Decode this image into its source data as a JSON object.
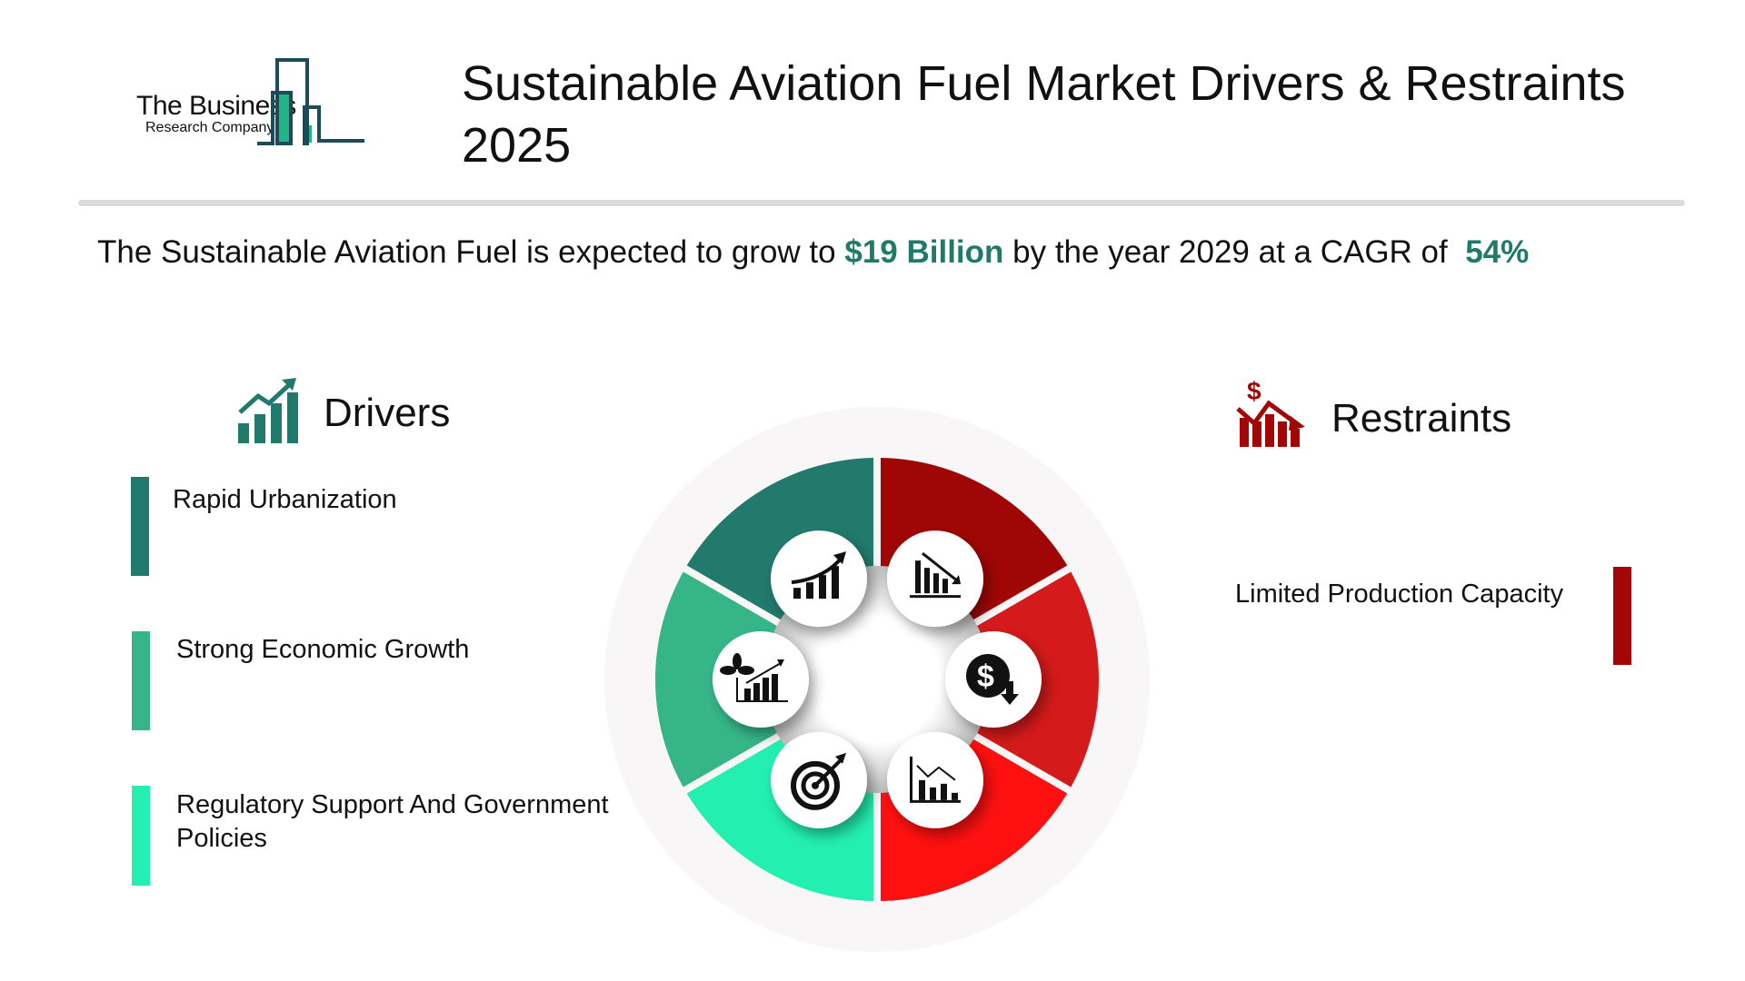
{
  "logo": {
    "line1": "The Business",
    "line2": "Research Company"
  },
  "header": {
    "title_line1": "Sustainable Aviation Fuel Market Drivers & Restraints",
    "title_line2": "2025"
  },
  "summary": {
    "prefix": "The Sustainable Aviation Fuel is expected to grow to ",
    "value": "$19 Billion",
    "middle": " by the year 2029 at a CAGR of ",
    "cagr": "54%"
  },
  "drivers": {
    "title": "Drivers",
    "icon": "growth-chart-icon",
    "items": [
      {
        "label": "Rapid Urbanization",
        "color": "#217a6c"
      },
      {
        "label": "Strong Economic Growth",
        "color": "#36b688"
      },
      {
        "label": "Regulatory Support And Government Policies",
        "color": "#22efb0"
      }
    ]
  },
  "restraints": {
    "title": "Restraints",
    "icon": "dollar-decline-icon",
    "items": [
      {
        "label": "Limited Production Capacity",
        "color": "#a30606"
      }
    ]
  },
  "wheel": {
    "segments": [
      {
        "color": "#217a6c",
        "icon": "rising-chart-icon"
      },
      {
        "color": "#a00606",
        "icon": "declining-bars-icon"
      },
      {
        "color": "#d41a1a",
        "icon": "dollar-down-icon"
      },
      {
        "color": "#fe1010",
        "icon": "chart-decline-icon"
      },
      {
        "color": "#22efb0",
        "icon": "target-icon"
      },
      {
        "color": "#36b688",
        "icon": "plant-growth-icon"
      }
    ]
  },
  "colors": {
    "accent": "#1f7a6a",
    "restraint": "#a30606"
  }
}
